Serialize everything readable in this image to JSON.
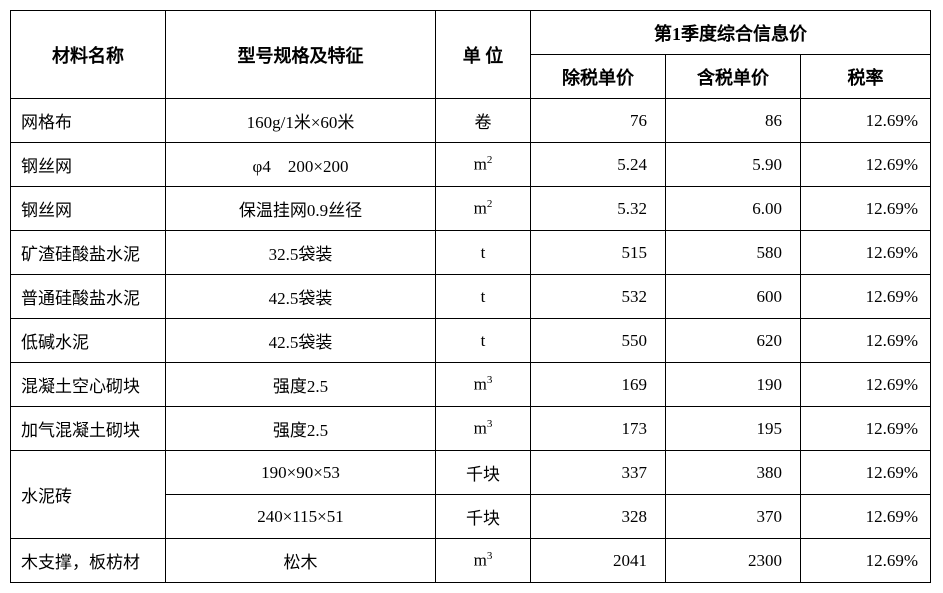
{
  "headers": {
    "material_name": "材料名称",
    "spec": "型号规格及特征",
    "unit": "单 位",
    "q1_group": "第1季度综合信息价",
    "price_ex_tax": "除税单价",
    "price_inc_tax": "含税单价",
    "tax_rate": "税率"
  },
  "units": {
    "juan": "卷",
    "m2": "m²",
    "t": "t",
    "m3": "m³",
    "qiankuai": "千块"
  },
  "rows": [
    {
      "name": "网格布",
      "spec": "160g/1米×60米",
      "unit_key": "juan",
      "ex": "76",
      "inc": "86",
      "rate": "12.69%"
    },
    {
      "name": "钢丝网",
      "spec": "φ4　200×200",
      "unit_key": "m2",
      "ex": "5.24",
      "inc": "5.90",
      "rate": "12.69%"
    },
    {
      "name": "钢丝网",
      "spec": "保温挂网0.9丝径",
      "unit_key": "m2",
      "ex": "5.32",
      "inc": "6.00",
      "rate": "12.69%"
    },
    {
      "name": "矿渣硅酸盐水泥",
      "spec": "32.5袋装",
      "unit_key": "t",
      "ex": "515",
      "inc": "580",
      "rate": "12.69%"
    },
    {
      "name": "普通硅酸盐水泥",
      "spec": "42.5袋装",
      "unit_key": "t",
      "ex": "532",
      "inc": "600",
      "rate": "12.69%"
    },
    {
      "name": "低碱水泥",
      "spec": "42.5袋装",
      "unit_key": "t",
      "ex": "550",
      "inc": "620",
      "rate": "12.69%"
    },
    {
      "name": "混凝土空心砌块",
      "spec": "强度2.5",
      "unit_key": "m3",
      "ex": "169",
      "inc": "190",
      "rate": "12.69%"
    },
    {
      "name": "加气混凝土砌块",
      "spec": "强度2.5",
      "unit_key": "m3",
      "ex": "173",
      "inc": "195",
      "rate": "12.69%"
    }
  ],
  "merged_row": {
    "name": "水泥砖",
    "sub": [
      {
        "spec": "190×90×53",
        "unit_key": "qiankuai",
        "ex": "337",
        "inc": "380",
        "rate": "12.69%"
      },
      {
        "spec": "240×115×51",
        "unit_key": "qiankuai",
        "ex": "328",
        "inc": "370",
        "rate": "12.69%"
      }
    ]
  },
  "last_row": {
    "name": "木支撑，板枋材",
    "spec": "松木",
    "unit_key": "m3",
    "ex": "2041",
    "inc": "2300",
    "rate": "12.69%"
  },
  "colors": {
    "border": "#000000",
    "text": "#000000",
    "background": "#ffffff"
  }
}
